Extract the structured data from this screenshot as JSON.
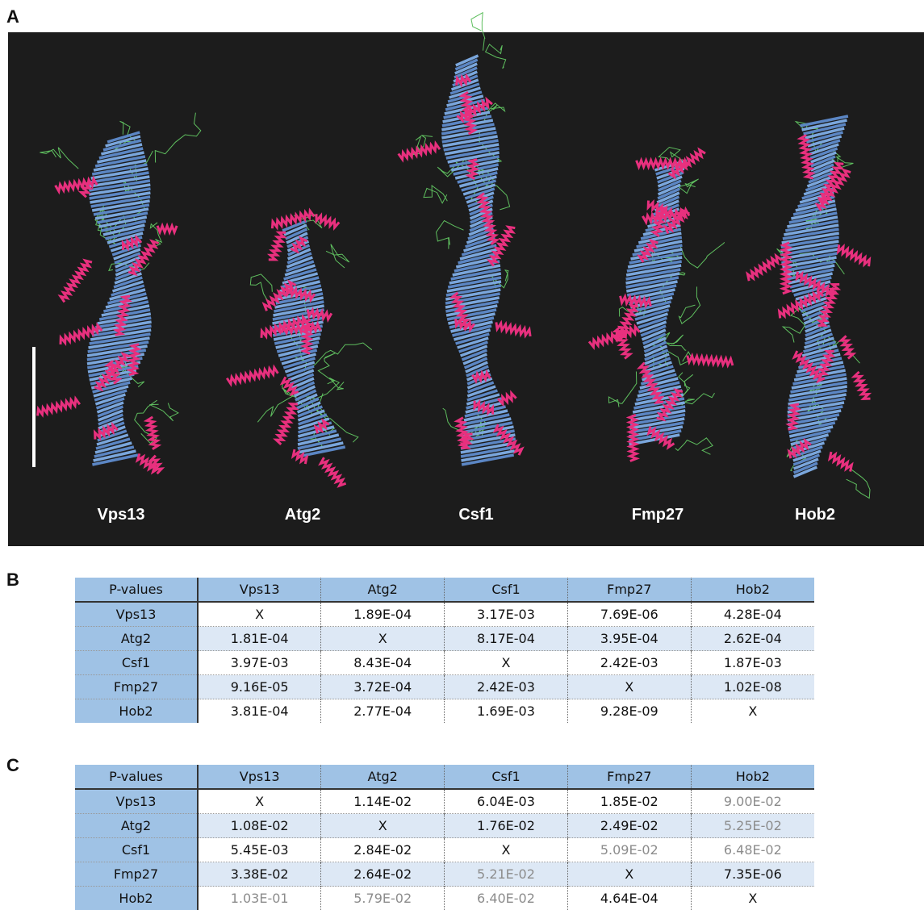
{
  "panel_labels": [
    "A",
    "B",
    "C"
  ],
  "panel_a": {
    "proteins": [
      "Vps13",
      "Atg2",
      "Csf1",
      "Fmp27",
      "Hob2"
    ]
  },
  "table_b": {
    "header": [
      "P-values",
      "Vps13",
      "Atg2",
      "Csf1",
      "Fmp27",
      "Hob2"
    ],
    "rows": [
      [
        "Vps13",
        "X",
        "1.89E-04",
        "3.17E-03",
        "7.69E-06",
        "4.28E-04"
      ],
      [
        "Atg2",
        "1.81E-04",
        "X",
        "8.17E-04",
        "3.95E-04",
        "2.62E-04"
      ],
      [
        "Csf1",
        "3.97E-03",
        "8.43E-04",
        "X",
        "2.42E-03",
        "1.87E-03"
      ],
      [
        "Fmp27",
        "9.16E-05",
        "3.72E-04",
        "2.42E-03",
        "X",
        "1.02E-08"
      ],
      [
        "Hob2",
        "3.81E-04",
        "2.77E-04",
        "1.69E-03",
        "9.28E-09",
        "X"
      ]
    ]
  },
  "table_c": {
    "header": [
      "P-values",
      "Vps13",
      "Atg2",
      "Csf1",
      "Fmp27",
      "Hob2"
    ],
    "rows": [
      [
        "Vps13",
        "X",
        "1.14E-02",
        "6.04E-03",
        "1.85E-02",
        {
          "text": "9.00E-02",
          "color": "#8c8c8c"
        }
      ],
      [
        "Atg2",
        "1.08E-02",
        "X",
        "1.76E-02",
        "2.49E-02",
        {
          "text": "5.25E-02",
          "color": "#8c8c8c"
        }
      ],
      [
        "Csf1",
        "5.45E-03",
        "2.84E-02",
        "X",
        {
          "text": "5.09E-02",
          "color": "#8c8c8c"
        },
        {
          "text": "6.48E-02",
          "color": "#8c8c8c"
        }
      ],
      [
        "Fmp27",
        "3.38E-02",
        "2.64E-02",
        {
          "text": "5.21E-02",
          "color": "#8c8c8c"
        },
        "X",
        "7.35E-06"
      ],
      [
        "Hob2",
        {
          "text": "1.03E-01",
          "color": "#8c8c8c"
        },
        {
          "text": "5.79E-02",
          "color": "#8c8c8c"
        },
        {
          "text": "6.40E-02",
          "color": "#8c8c8c"
        },
        "4.64E-04",
        "X"
      ]
    ]
  }
}
